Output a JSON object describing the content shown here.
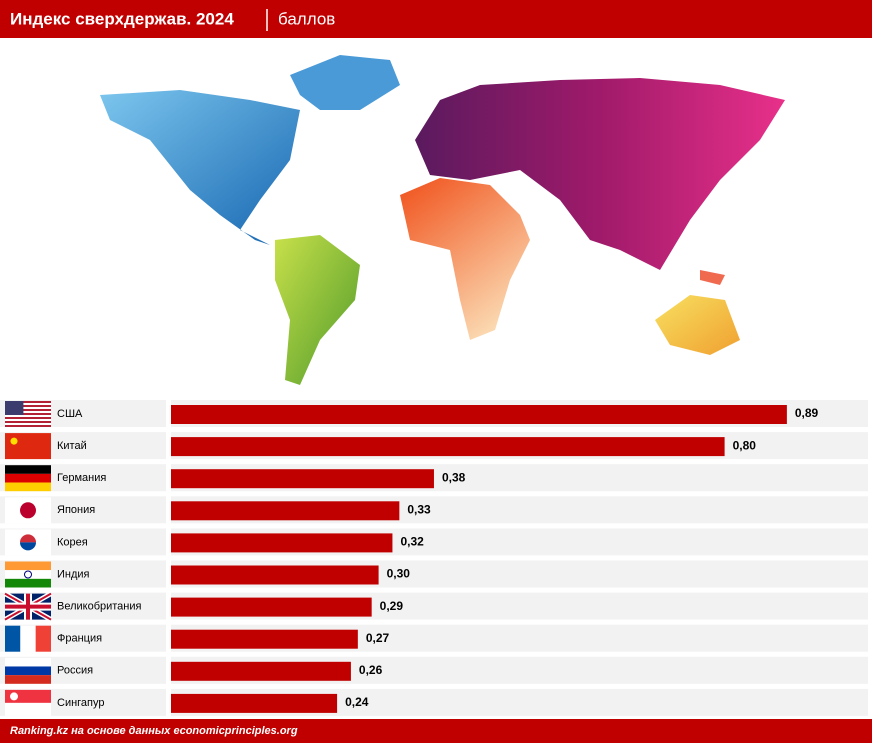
{
  "chart_data": {
    "type": "bar",
    "title": "Индекс сверхдержав. 2024",
    "subtitle": "баллов",
    "categories": [
      "США",
      "Китай",
      "Германия",
      "Япония",
      "Корея",
      "Индия",
      "Великобритания",
      "Франция",
      "Россия",
      "Сингапур"
    ],
    "values": [
      0.89,
      0.8,
      0.38,
      0.33,
      0.32,
      0.3,
      0.29,
      0.27,
      0.26,
      0.24
    ],
    "value_labels": [
      "0,89",
      "0,80",
      "0,38",
      "0,33",
      "0,32",
      "0,30",
      "0,29",
      "0,27",
      "0,26",
      "0,24"
    ],
    "color": "#c00000",
    "source": "Ranking.kz на основе данных economicprinciples.org"
  }
}
